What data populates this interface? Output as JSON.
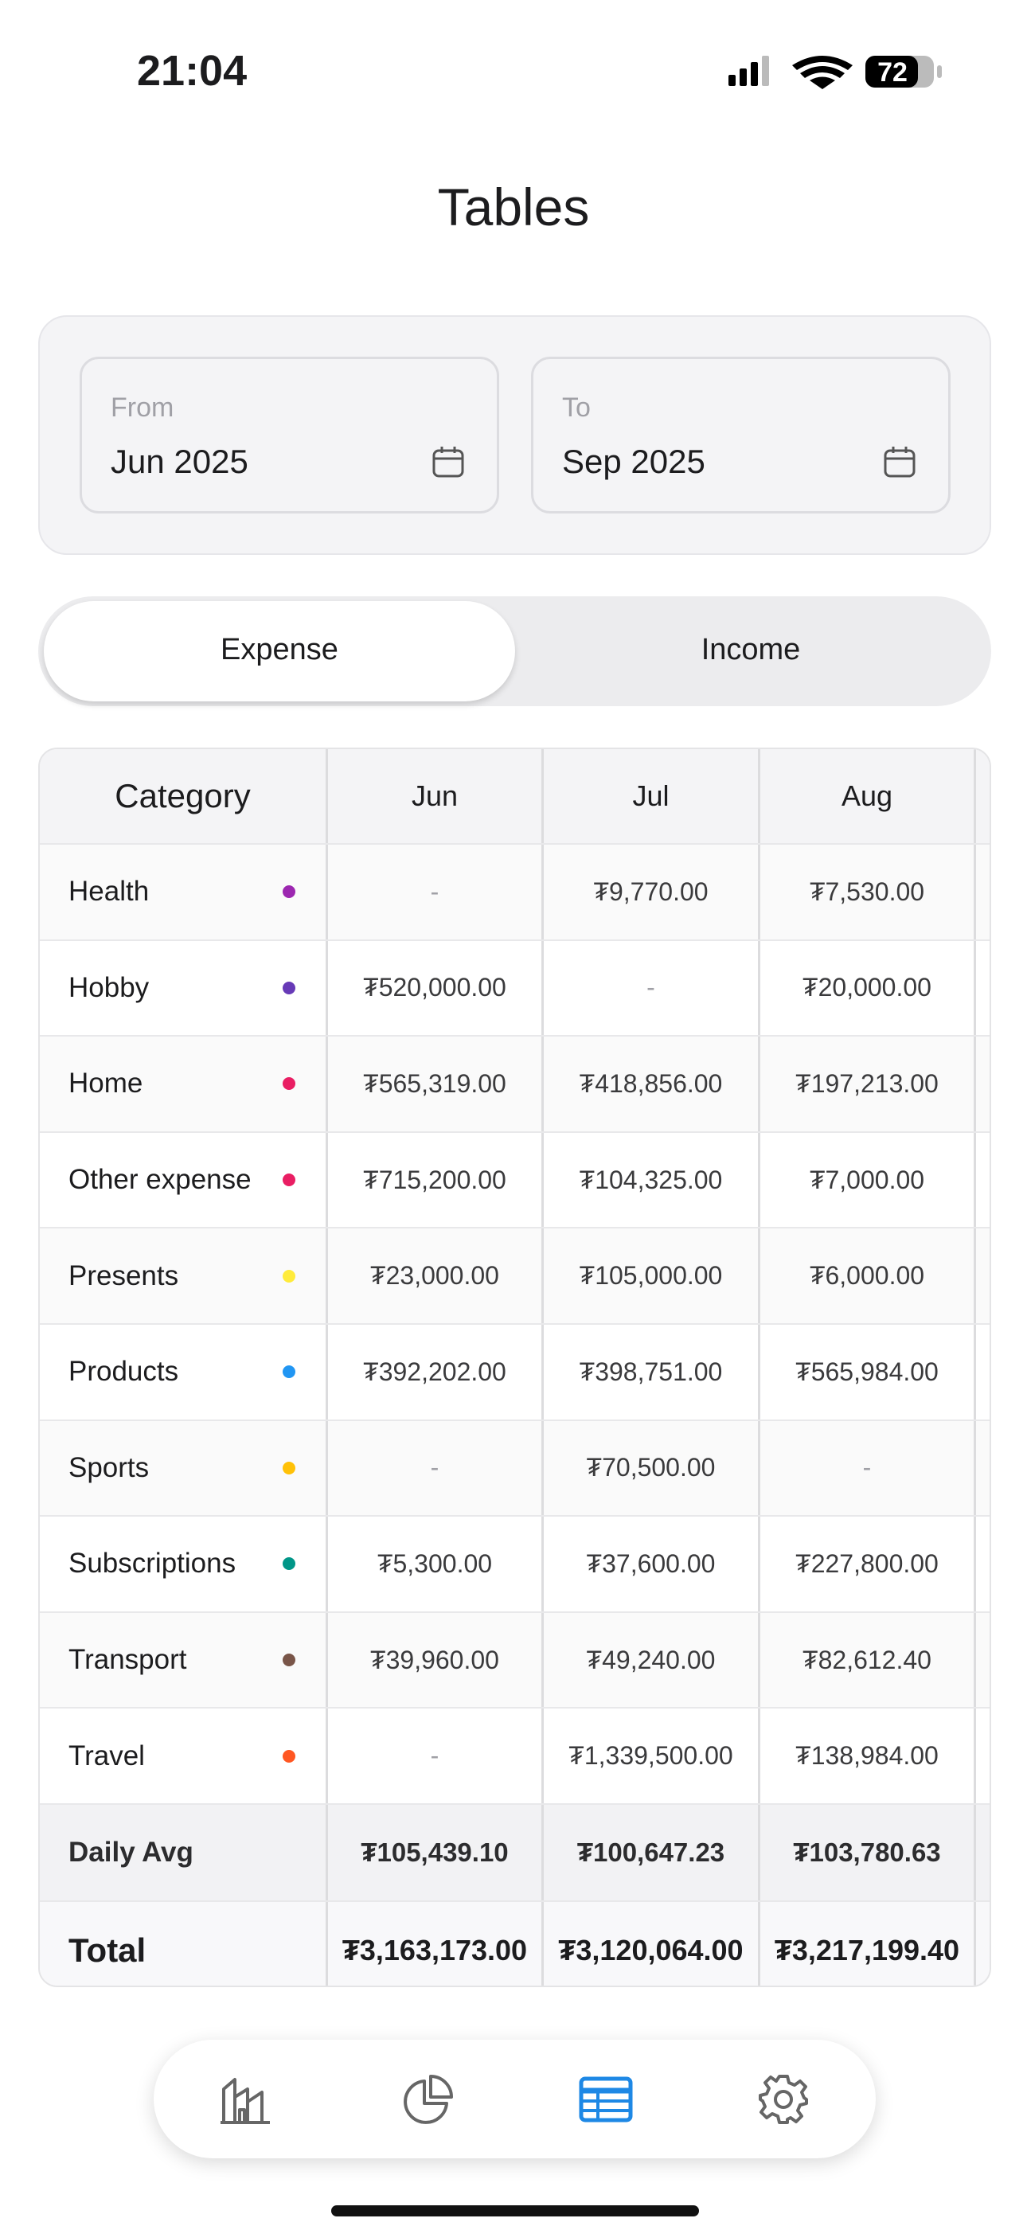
{
  "status": {
    "time": "21:04",
    "battery": "72"
  },
  "title": "Tables",
  "range": {
    "from_label": "From",
    "from": "Jun 2025",
    "to_label": "To",
    "to": "Sep 2025"
  },
  "tabs": [
    "Expense",
    "Income"
  ],
  "table": {
    "header": [
      "Category",
      "Jun",
      "Jul",
      "Aug"
    ],
    "rows": [
      [
        "Health",
        "-",
        "₮9,770.00",
        "₮7,530.00"
      ],
      [
        "Hobby",
        "₮520,000.00",
        "-",
        "₮20,000.00"
      ],
      [
        "Home",
        "₮565,319.00",
        "₮418,856.00",
        "₮197,213.00"
      ],
      [
        "Other expense",
        "₮715,200.00",
        "₮104,325.00",
        "₮7,000.00"
      ],
      [
        "Presents",
        "₮23,000.00",
        "₮105,000.00",
        "₮6,000.00"
      ],
      [
        "Products",
        "₮392,202.00",
        "₮398,751.00",
        "₮565,984.00"
      ],
      [
        "Sports",
        "-",
        "₮70,500.00",
        "-"
      ],
      [
        "Subscriptions",
        "₮5,300.00",
        "₮37,600.00",
        "₮227,800.00"
      ],
      [
        "Transport",
        "₮39,960.00",
        "₮49,240.00",
        "₮82,612.40"
      ],
      [
        "Travel",
        "-",
        "₮1,339,500.00",
        "₮138,984.00"
      ]
    ],
    "dot_colors": [
      "#9c27b0",
      "#673ab7",
      "#e91e63",
      "#e91e63",
      "#ffeb3b",
      "#2196f3",
      "#ffc107",
      "#009688",
      "#795548",
      "#ff5722"
    ],
    "daily_avg": [
      "Daily Avg",
      "₮105,439.10",
      "₮100,647.23",
      "₮103,780.63"
    ],
    "total": [
      "Total",
      "₮3,163,173.00",
      "₮3,120,064.00",
      "₮3,217,199.40"
    ]
  }
}
